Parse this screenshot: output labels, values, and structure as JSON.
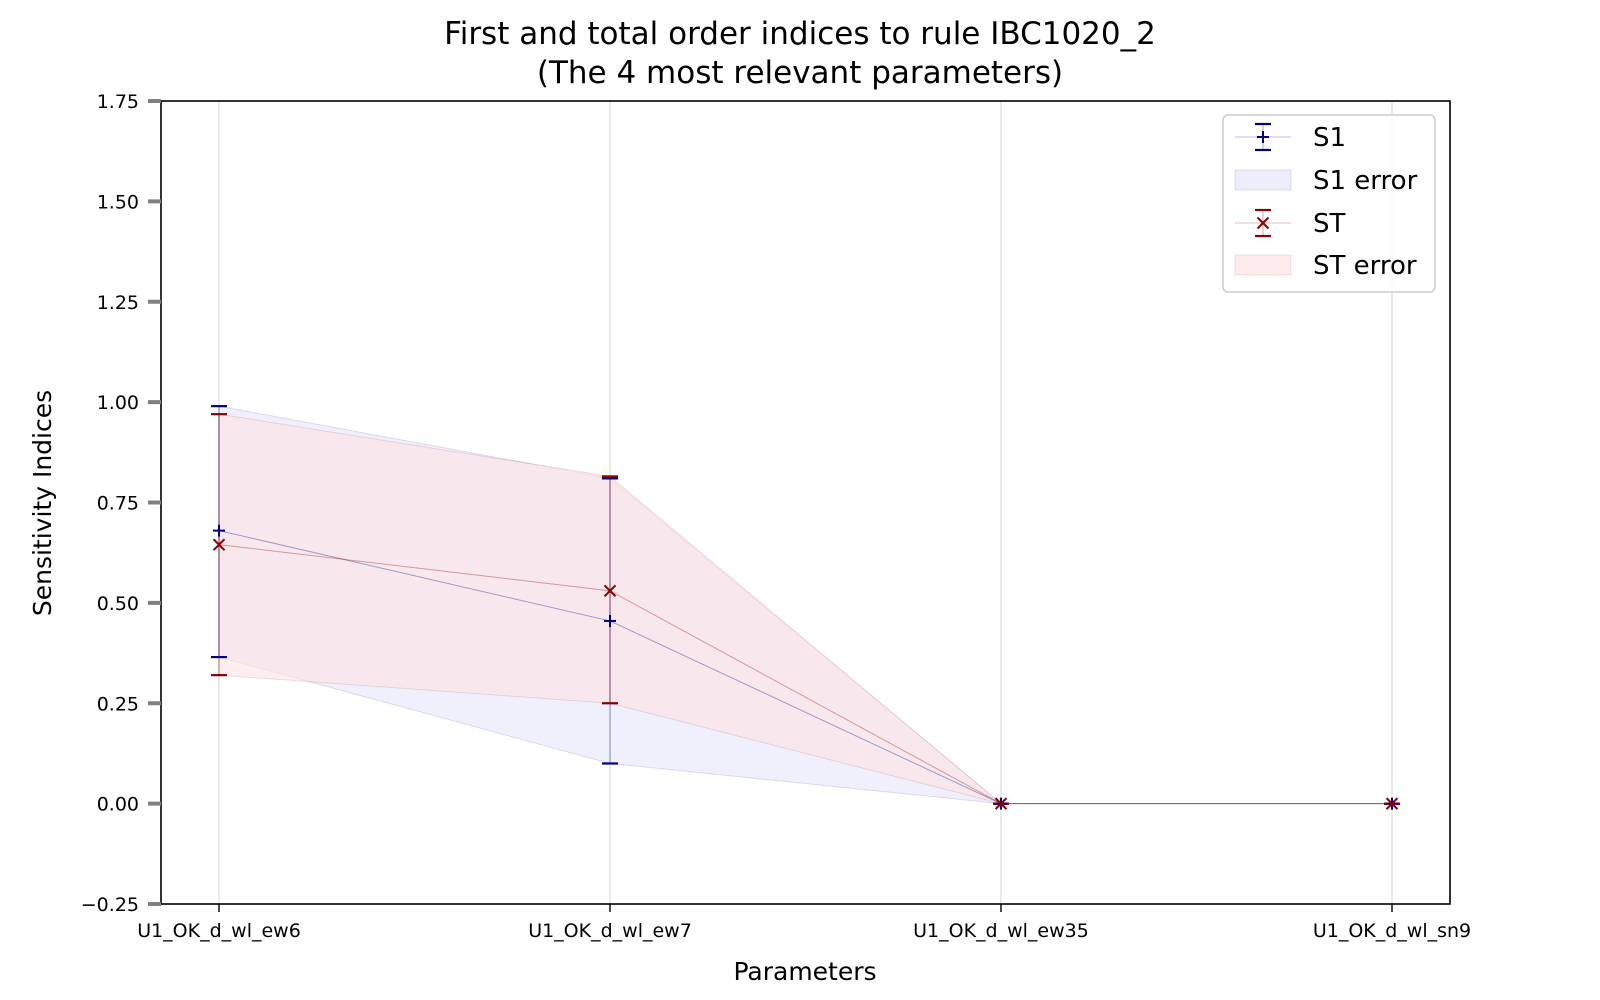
{
  "chart_data": {
    "type": "line",
    "title": "First and total order indices to rule IBC1020_2",
    "subtitle": "(The 4 most relevant parameters)",
    "xlabel": "Parameters",
    "ylabel": "Sensitivity Indices",
    "categories": [
      "U1_OK_d_wl_ew6",
      "U1_OK_d_wl_ew7",
      "U1_OK_d_wl_ew35",
      "U1_OK_d_wl_sn9"
    ],
    "ylim": [
      -0.25,
      1.75
    ],
    "yticks": [
      -0.25,
      0.0,
      0.25,
      0.5,
      0.75,
      1.0,
      1.25,
      1.5,
      1.75
    ],
    "ytick_labels": [
      "−0.25",
      "0.00",
      "0.25",
      "0.50",
      "0.75",
      "1.00",
      "1.25",
      "1.50",
      "1.75"
    ],
    "grid": "vertical",
    "legend_position": "top-right",
    "series": [
      {
        "name": "S1",
        "marker": "+",
        "color": "#000080",
        "fill_color": "#e6e6fa",
        "values": [
          0.68,
          0.455,
          0.0,
          0.0
        ],
        "lower": [
          0.365,
          0.1,
          0.0,
          0.0
        ],
        "upper": [
          0.99,
          0.81,
          0.0,
          0.0
        ]
      },
      {
        "name": "ST",
        "marker": "x",
        "color": "#8b0000",
        "fill_color": "#fde3e3",
        "values": [
          0.645,
          0.53,
          0.0,
          0.0
        ],
        "lower": [
          0.32,
          0.25,
          0.0,
          0.0
        ],
        "upper": [
          0.97,
          0.815,
          0.0,
          0.0
        ]
      }
    ],
    "legend": [
      "S1",
      "S1 error",
      "ST",
      "ST error"
    ]
  }
}
